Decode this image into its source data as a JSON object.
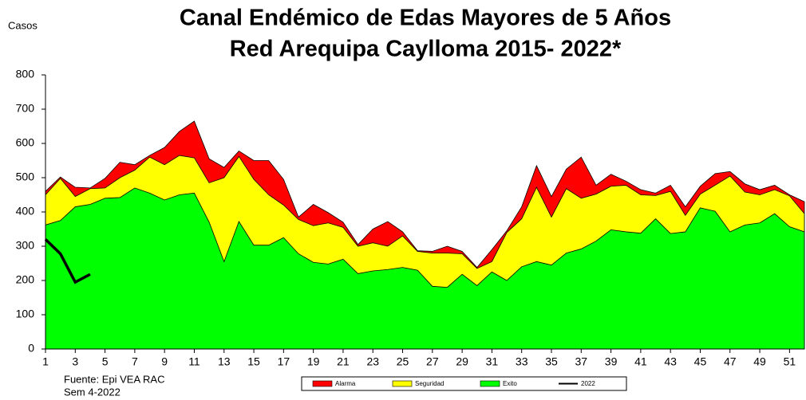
{
  "chart_data": {
    "type": "area",
    "title": "Canal Endémico de Edas Mayores de 5 Años",
    "subtitle": "Red Arequipa Caylloma 2015- 2022*",
    "y_label": "Casos",
    "source": "Fuente:  Epi VEA RAC",
    "note": "Sem  4-2022",
    "x": [
      1,
      2,
      3,
      4,
      5,
      6,
      7,
      8,
      9,
      10,
      11,
      12,
      13,
      14,
      15,
      16,
      17,
      18,
      19,
      20,
      21,
      22,
      23,
      24,
      25,
      26,
      27,
      28,
      29,
      30,
      31,
      32,
      33,
      34,
      35,
      36,
      37,
      38,
      39,
      40,
      41,
      42,
      43,
      44,
      45,
      46,
      47,
      48,
      49,
      50,
      51,
      52
    ],
    "xlim": [
      1,
      52
    ],
    "xticks": [
      1,
      3,
      5,
      7,
      9,
      11,
      13,
      15,
      17,
      19,
      21,
      23,
      25,
      27,
      29,
      31,
      33,
      35,
      37,
      39,
      41,
      43,
      45,
      47,
      49,
      51
    ],
    "ylim": [
      0,
      800
    ],
    "yticks": [
      0,
      100,
      200,
      300,
      400,
      500,
      600,
      700,
      800
    ],
    "grid": false,
    "series": [
      {
        "name": "Alarma",
        "color": "#ff0000",
        "style": "area",
        "values": [
          460,
          502,
          472,
          470,
          498,
          545,
          538,
          565,
          588,
          635,
          665,
          555,
          530,
          578,
          550,
          550,
          495,
          385,
          422,
          398,
          370,
          305,
          350,
          372,
          342,
          287,
          285,
          300,
          285,
          238,
          290,
          345,
          415,
          535,
          445,
          525,
          560,
          478,
          510,
          490,
          465,
          455,
          478,
          415,
          475,
          512,
          518,
          482,
          465,
          478,
          450,
          430
        ]
      },
      {
        "name": "Seguridad",
        "color": "#ffff00",
        "style": "area",
        "values": [
          450,
          498,
          445,
          468,
          470,
          500,
          522,
          560,
          538,
          565,
          558,
          485,
          500,
          562,
          495,
          450,
          420,
          378,
          360,
          368,
          355,
          300,
          310,
          300,
          330,
          285,
          280,
          280,
          278,
          235,
          255,
          340,
          380,
          472,
          385,
          468,
          440,
          452,
          475,
          478,
          450,
          448,
          460,
          390,
          452,
          478,
          505,
          458,
          450,
          465,
          447,
          395
        ]
      },
      {
        "name": "Exito",
        "color": "#00ff00",
        "style": "area",
        "values": [
          362,
          375,
          415,
          422,
          440,
          442,
          470,
          455,
          435,
          450,
          455,
          370,
          255,
          372,
          303,
          303,
          325,
          278,
          253,
          248,
          262,
          220,
          228,
          232,
          238,
          230,
          183,
          180,
          218,
          185,
          225,
          200,
          240,
          255,
          245,
          280,
          292,
          315,
          348,
          342,
          338,
          380,
          337,
          342,
          412,
          402,
          342,
          362,
          368,
          395,
          357,
          342
        ]
      },
      {
        "name": "2022",
        "color": "#000000",
        "style": "line",
        "values": [
          320,
          278,
          195,
          218,
          null,
          null,
          null,
          null,
          null,
          null,
          null,
          null,
          null,
          null,
          null,
          null,
          null,
          null,
          null,
          null,
          null,
          null,
          null,
          null,
          null,
          null,
          null,
          null,
          null,
          null,
          null,
          null,
          null,
          null,
          null,
          null,
          null,
          null,
          null,
          null,
          null,
          null,
          null,
          null,
          null,
          null,
          null,
          null,
          null,
          null,
          null,
          null
        ]
      }
    ]
  }
}
